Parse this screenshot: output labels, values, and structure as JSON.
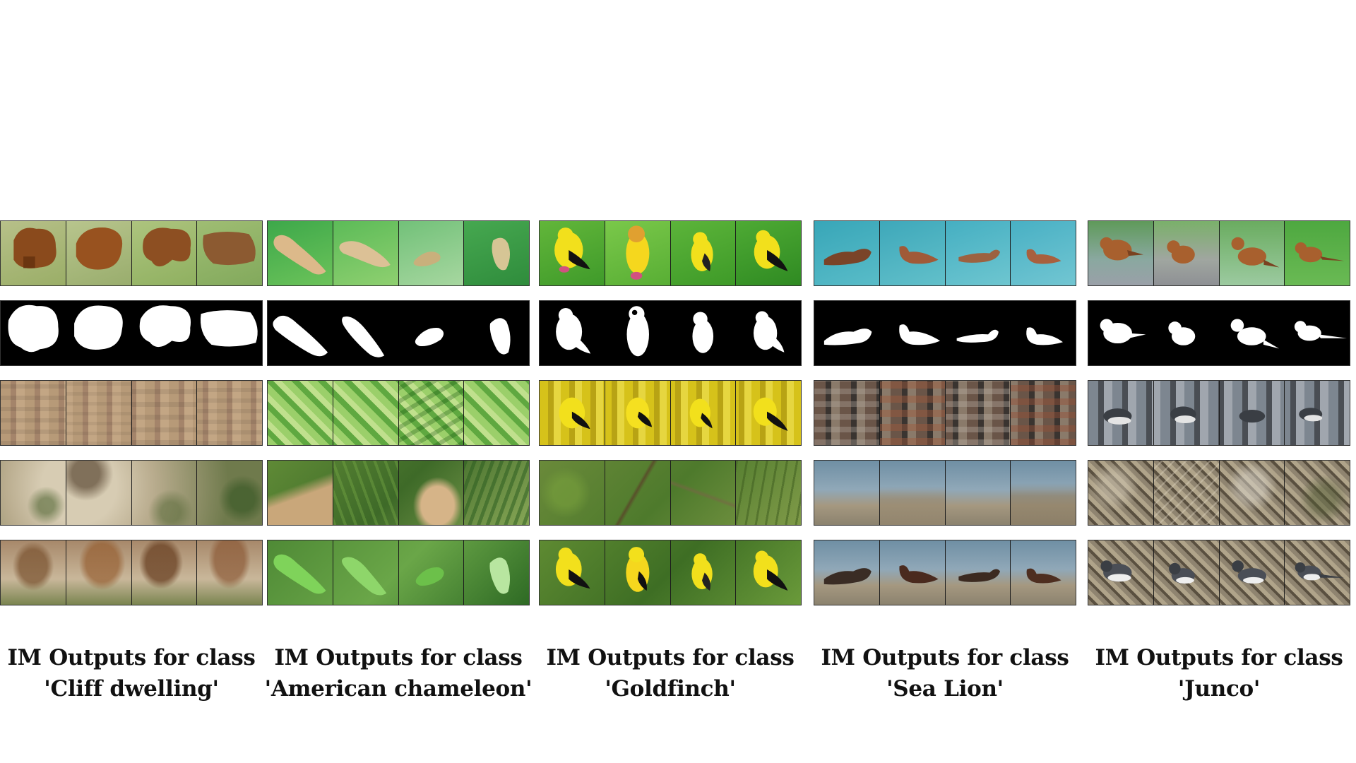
{
  "figure": {
    "groups": [
      {
        "id": "cliff-dwelling",
        "caption_line1": "IM Outputs for class",
        "caption_line2": "'Cliff dwelling'",
        "subject_color": "#8a4a1c",
        "bg_color": "#a9b778",
        "texture_color": "#b79a78",
        "scene_color": "#c4b69a"
      },
      {
        "id": "american-chameleon",
        "caption_line1": "IM Outputs for class",
        "caption_line2": "'American chameleon'",
        "subject_color": "#d9b98a",
        "bg_color": "#59b24a",
        "texture_color": "#8cc25a",
        "scene_color": "#5f8a36"
      },
      {
        "id": "goldfinch",
        "caption_line1": "IM Outputs for class",
        "caption_line2": "'Goldfinch'",
        "subject_color": "#f2e01c",
        "bg_color": "#4fae2e",
        "texture_color": "#d6c21a",
        "scene_color": "#6a8a3a"
      },
      {
        "id": "sea-lion",
        "caption_line1": "IM Outputs for class",
        "caption_line2": "'Sea Lion'",
        "subject_color": "#8a5030",
        "bg_color": "#3aa6b8",
        "texture_color": "#6a5548",
        "scene_color": "#7f96a4"
      },
      {
        "id": "junco",
        "caption_line1": "IM Outputs for class",
        "caption_line2": "'Junco'",
        "subject_color": "#a8602e",
        "bg_color": "#6a9a5a",
        "texture_color": "#7d8690",
        "scene_color": "#8f8470"
      }
    ]
  }
}
